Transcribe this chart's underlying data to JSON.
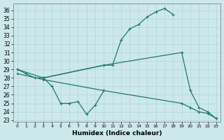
{
  "xlabel": "Humidex (Indice chaleur)",
  "bg_color": "#cde8eb",
  "grid_color": "#add8dc",
  "line_color": "#1e7a6a",
  "xlim": [
    -0.5,
    23.5
  ],
  "ylim": [
    22.8,
    36.8
  ],
  "yticks": [
    23,
    24,
    25,
    26,
    27,
    28,
    29,
    30,
    31,
    32,
    33,
    34,
    35,
    36
  ],
  "xticks": [
    0,
    1,
    2,
    3,
    4,
    5,
    6,
    7,
    8,
    9,
    10,
    11,
    12,
    13,
    14,
    15,
    16,
    17,
    18,
    19,
    20,
    21,
    22,
    23
  ],
  "series": [
    {
      "x": [
        0,
        1,
        2,
        3,
        10,
        11,
        12,
        13,
        14,
        15,
        16,
        17,
        18
      ],
      "y": [
        29.0,
        28.5,
        28.0,
        28.0,
        29.5,
        29.5,
        32.5,
        33.8,
        34.3,
        35.2,
        35.8,
        36.2,
        35.5
      ]
    },
    {
      "x": [
        3,
        4,
        5,
        6,
        7,
        8,
        9,
        10
      ],
      "y": [
        28.0,
        27.0,
        25.0,
        25.0,
        25.2,
        23.7,
        24.8,
        26.5
      ]
    },
    {
      "x": [
        0,
        3,
        10,
        19,
        20,
        21,
        22,
        23
      ],
      "y": [
        29.0,
        28.0,
        29.5,
        31.0,
        26.5,
        24.5,
        24.0,
        23.2
      ]
    },
    {
      "x": [
        0,
        3,
        10,
        19,
        20,
        21,
        22,
        23
      ],
      "y": [
        28.5,
        27.8,
        26.5,
        25.0,
        24.5,
        24.0,
        23.8,
        23.2
      ]
    }
  ]
}
